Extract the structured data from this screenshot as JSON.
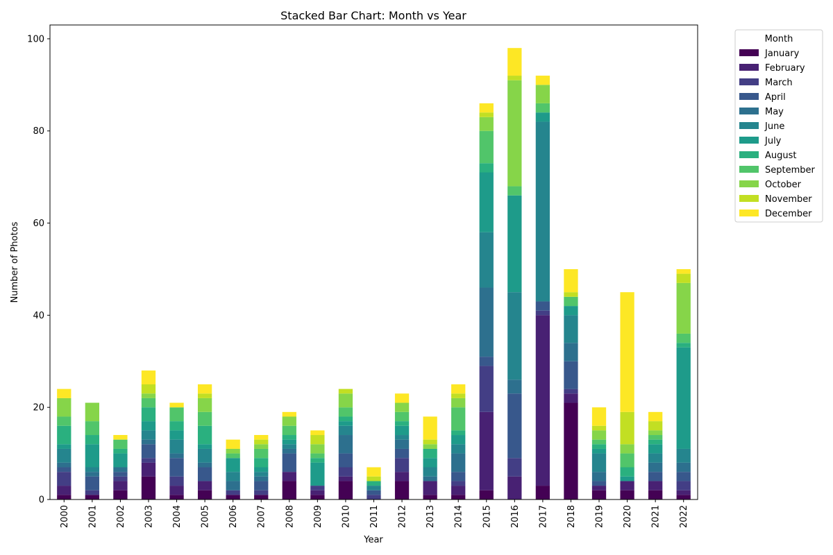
{
  "chart_data": {
    "type": "bar",
    "stacked": true,
    "title": "Stacked Bar Chart: Month vs Year",
    "xlabel": "Year",
    "ylabel": "Number of Photos",
    "ylim": [
      0,
      103
    ],
    "yticks": [
      0,
      20,
      40,
      60,
      80,
      100
    ],
    "legend_title": "Month",
    "legend_position": "outside-top-right",
    "categories": [
      "2000",
      "2001",
      "2002",
      "2003",
      "2004",
      "2005",
      "2006",
      "2007",
      "2008",
      "2009",
      "2010",
      "2011",
      "2012",
      "2013",
      "2014",
      "2015",
      "2016",
      "2017",
      "2018",
      "2019",
      "2020",
      "2021",
      "2022"
    ],
    "series": [
      {
        "name": "January",
        "color": "#440154",
        "values": [
          1,
          1,
          2,
          5,
          1,
          2,
          1,
          1,
          4,
          1,
          4,
          0,
          4,
          1,
          1,
          2,
          0,
          3,
          21,
          2,
          2,
          2,
          1
        ]
      },
      {
        "name": "February",
        "color": "#482173",
        "values": [
          2,
          0,
          2,
          3,
          2,
          2,
          0,
          0,
          2,
          1,
          1,
          0,
          2,
          3,
          2,
          17,
          5,
          37,
          2,
          1,
          2,
          2,
          1
        ]
      },
      {
        "name": "March",
        "color": "#433e85",
        "values": [
          3,
          1,
          1,
          1,
          2,
          0,
          1,
          1,
          0,
          1,
          2,
          1,
          3,
          0,
          1,
          10,
          4,
          1,
          1,
          0,
          0,
          0,
          2
        ]
      },
      {
        "name": "April",
        "color": "#38588c",
        "values": [
          1,
          3,
          1,
          3,
          4,
          3,
          0,
          2,
          4,
          0,
          3,
          1,
          2,
          0,
          2,
          2,
          14,
          2,
          6,
          1,
          0,
          2,
          2
        ]
      },
      {
        "name": "May",
        "color": "#2d708e",
        "values": [
          1,
          1,
          1,
          1,
          1,
          1,
          2,
          1,
          1,
          0,
          4,
          0,
          2,
          1,
          4,
          15,
          3,
          0,
          4,
          2,
          0,
          2,
          2
        ]
      },
      {
        "name": "June",
        "color": "#25858e",
        "values": [
          3,
          1,
          0,
          2,
          3,
          3,
          2,
          1,
          1,
          0,
          2,
          1,
          1,
          2,
          2,
          12,
          19,
          39,
          6,
          4,
          0,
          2,
          3
        ]
      },
      {
        "name": "July",
        "color": "#1e9b8a",
        "values": [
          1,
          5,
          3,
          2,
          2,
          1,
          3,
          1,
          1,
          5,
          1,
          0,
          2,
          2,
          2,
          13,
          21,
          2,
          2,
          1,
          1,
          2,
          22
        ]
      },
      {
        "name": "August",
        "color": "#2ab07f",
        "values": [
          4,
          2,
          1,
          3,
          2,
          4,
          0,
          2,
          1,
          1,
          1,
          1,
          1,
          2,
          1,
          2,
          0,
          0,
          0,
          1,
          2,
          1,
          1
        ]
      },
      {
        "name": "September",
        "color": "#51c56a",
        "values": [
          2,
          3,
          2,
          2,
          3,
          3,
          1,
          2,
          2,
          1,
          2,
          0,
          2,
          0,
          5,
          7,
          2,
          2,
          2,
          1,
          3,
          1,
          2
        ]
      },
      {
        "name": "October",
        "color": "#86d549",
        "values": [
          4,
          4,
          0,
          1,
          0,
          3,
          1,
          1,
          2,
          2,
          3,
          0,
          2,
          1,
          2,
          3,
          23,
          4,
          0,
          2,
          2,
          1,
          11
        ]
      },
      {
        "name": "November",
        "color": "#c2df23",
        "values": [
          0,
          0,
          0,
          2,
          0,
          1,
          0,
          1,
          0,
          2,
          1,
          1,
          0,
          1,
          1,
          1,
          1,
          0,
          1,
          1,
          7,
          2,
          2
        ]
      },
      {
        "name": "December",
        "color": "#fde725",
        "values": [
          2,
          0,
          1,
          3,
          1,
          2,
          2,
          1,
          1,
          1,
          0,
          2,
          2,
          5,
          2,
          2,
          6,
          2,
          5,
          4,
          26,
          2,
          1
        ]
      }
    ]
  }
}
